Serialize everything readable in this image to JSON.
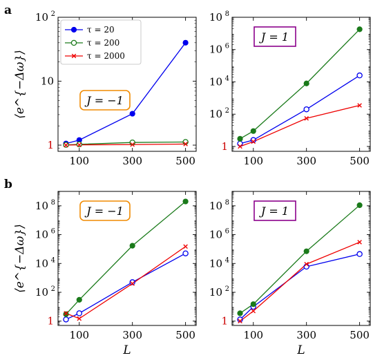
{
  "panel_labels": [
    "a",
    "b"
  ],
  "y_axis_label": "⟨e^{−Δω}⟩",
  "x_axis_label": "L",
  "colors": {
    "tau_20": "#0000ee",
    "tau_200": "#1a7a1a",
    "tau_2000": "#ee0000",
    "j_neg_box": "#f08a00",
    "j_pos_box": "#8b008b",
    "one_tick": "#cc0000"
  },
  "chart_data": [
    {
      "id": "a-left",
      "type": "line",
      "yscale": "log",
      "x": [
        50,
        100,
        300,
        500
      ],
      "xlim": [
        20,
        540
      ],
      "ylim": [
        0.8,
        100
      ],
      "xticks": [
        "100",
        "300",
        "500"
      ],
      "yticks": [
        {
          "v": 1,
          "label": "1",
          "red": true
        },
        {
          "v": 10,
          "label": "10"
        },
        {
          "v": 100,
          "label": "10",
          "sup": "2"
        }
      ],
      "annotation": "J = −1",
      "annotation_kind": "neg",
      "legend": true,
      "show_xlabel": false,
      "series": [
        {
          "name": "τ = 20",
          "key": "tau_20",
          "marker": "dot",
          "values": [
            1.06,
            1.2,
            3.1,
            40
          ]
        },
        {
          "name": "τ = 200",
          "key": "tau_200",
          "marker": "ring",
          "values": [
            1.01,
            1.03,
            1.1,
            1.12
          ]
        },
        {
          "name": "τ = 2000",
          "key": "tau_2000",
          "marker": "x",
          "values": [
            1.0,
            1.01,
            1.02,
            1.04
          ]
        }
      ]
    },
    {
      "id": "a-right",
      "type": "line",
      "yscale": "log",
      "x": [
        50,
        100,
        300,
        500
      ],
      "xlim": [
        20,
        540
      ],
      "ylim": [
        0.5,
        100000000
      ],
      "xticks": [
        "100",
        "300",
        "500"
      ],
      "yticks": [
        {
          "v": 1,
          "label": "1",
          "red": true
        },
        {
          "v": 100,
          "label": "10",
          "sup": "2"
        },
        {
          "v": 10000,
          "label": "10",
          "sup": "4"
        },
        {
          "v": 1000000,
          "label": "10",
          "sup": "6"
        },
        {
          "v": 100000000,
          "label": "10",
          "sup": "8"
        }
      ],
      "annotation": "J = 1",
      "annotation_kind": "pos",
      "legend": false,
      "show_xlabel": false,
      "series": [
        {
          "name": "τ = 20",
          "key": "tau_20",
          "marker": "ring",
          "values": [
            1.5,
            2.5,
            200,
            25000
          ]
        },
        {
          "name": "τ = 200",
          "key": "tau_200",
          "marker": "dot",
          "values": [
            3,
            9,
            8000,
            18000000
          ]
        },
        {
          "name": "τ = 2000",
          "key": "tau_2000",
          "marker": "x",
          "values": [
            1,
            2,
            55,
            350
          ]
        }
      ]
    },
    {
      "id": "b-left",
      "type": "line",
      "yscale": "log",
      "x": [
        50,
        100,
        300,
        500
      ],
      "xlim": [
        20,
        540
      ],
      "ylim": [
        0.5,
        1000000000
      ],
      "xticks": [
        "100",
        "300",
        "500"
      ],
      "yticks": [
        {
          "v": 1,
          "label": "1",
          "red": true
        },
        {
          "v": 100,
          "label": "10",
          "sup": "2"
        },
        {
          "v": 10000,
          "label": "10",
          "sup": "4"
        },
        {
          "v": 1000000,
          "label": "10",
          "sup": "6"
        },
        {
          "v": 100000000,
          "label": "10",
          "sup": "8"
        }
      ],
      "annotation": "J = −1",
      "annotation_kind": "neg",
      "legend": false,
      "show_xlabel": true,
      "series": [
        {
          "name": "τ = 20",
          "key": "tau_20",
          "marker": "ring",
          "values": [
            1.3,
            3.5,
            500,
            50000
          ]
        },
        {
          "name": "τ = 200",
          "key": "tau_200",
          "marker": "dot",
          "values": [
            3,
            30,
            170000,
            200000000
          ]
        },
        {
          "name": "τ = 2000",
          "key": "tau_2000",
          "marker": "x",
          "values": [
            3.5,
            1.5,
            400,
            150000
          ]
        }
      ]
    },
    {
      "id": "b-right",
      "type": "line",
      "yscale": "log",
      "x": [
        50,
        100,
        300,
        500
      ],
      "xlim": [
        20,
        540
      ],
      "ylim": [
        0.5,
        1000000000
      ],
      "xticks": [
        "100",
        "300",
        "500"
      ],
      "yticks": [
        {
          "v": 1,
          "label": "1",
          "red": true
        },
        {
          "v": 100,
          "label": "10",
          "sup": "2"
        },
        {
          "v": 10000,
          "label": "10",
          "sup": "4"
        },
        {
          "v": 1000000,
          "label": "10",
          "sup": "6"
        },
        {
          "v": 100000000,
          "label": "10",
          "sup": "8"
        }
      ],
      "annotation": "J = 1",
      "annotation_kind": "pos",
      "legend": false,
      "show_xlabel": true,
      "series": [
        {
          "name": "τ = 20",
          "key": "tau_20",
          "marker": "ring",
          "values": [
            1.3,
            10,
            6000,
            45000
          ]
        },
        {
          "name": "τ = 200",
          "key": "tau_200",
          "marker": "dot",
          "values": [
            3.5,
            15,
            70000,
            110000000
          ]
        },
        {
          "name": "τ = 2000",
          "key": "tau_2000",
          "marker": "x",
          "values": [
            1,
            5,
            9000,
            300000
          ]
        }
      ]
    }
  ]
}
